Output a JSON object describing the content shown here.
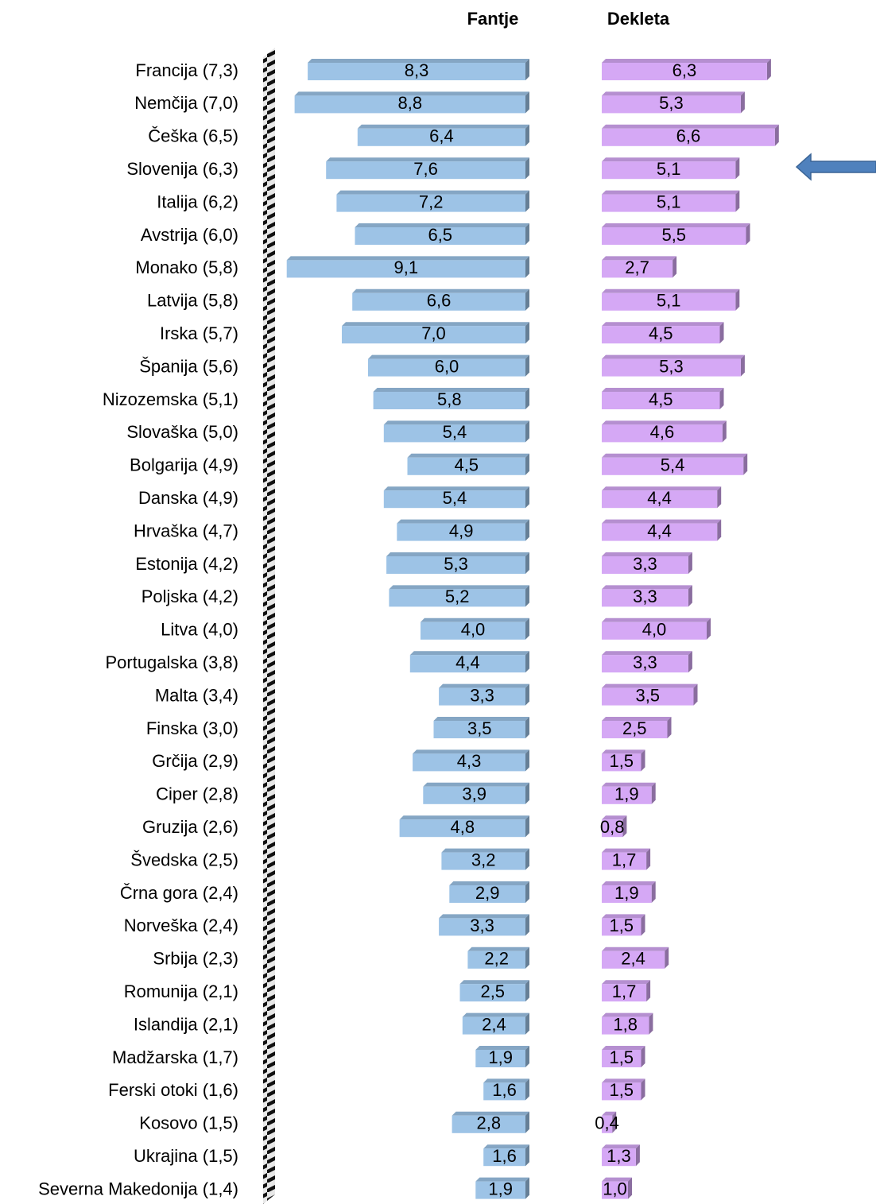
{
  "chart_data": {
    "type": "bar",
    "categories": [
      "Francija (7,3)",
      "Nemčija (7,0)",
      "Češka (6,5)",
      "Slovenija (6,3)",
      "Italija (6,2)",
      "Avstrija (6,0)",
      "Monako (5,8)",
      "Latvija (5,8)",
      "Irska (5,7)",
      "Španija (5,6)",
      "Nizozemska (5,1)",
      "Slovaška (5,0)",
      "Bolgarija (4,9)",
      "Danska (4,9)",
      "Hrvaška (4,7)",
      "Estonija (4,2)",
      "Poljska (4,2)",
      "Litva (4,0)",
      "Portugalska (3,8)",
      "Malta (3,4)",
      "Finska (3,0)",
      "Grčija (2,9)",
      "Ciper (2,8)",
      "Gruzija (2,6)",
      "Švedska (2,5)",
      "Črna gora (2,4)",
      "Norveška (2,4)",
      "Srbija (2,3)",
      "Romunija (2,1)",
      "Islandija (2,1)",
      "Madžarska (1,7)",
      "Ferski otoki (1,6)",
      "Kosovo (1,5)",
      "Ukrajina (1,5)",
      "Severna Makedonija (1,4)"
    ],
    "series": [
      {
        "name": "Fantje",
        "color": "#9dc3e6",
        "values": [
          8.3,
          8.8,
          6.4,
          7.6,
          7.2,
          6.5,
          9.1,
          6.6,
          7.0,
          6.0,
          5.8,
          5.4,
          4.5,
          5.4,
          4.9,
          5.3,
          5.2,
          4.0,
          4.4,
          3.3,
          3.5,
          4.3,
          3.9,
          4.8,
          3.2,
          2.9,
          3.3,
          2.2,
          2.5,
          2.4,
          1.9,
          1.6,
          2.8,
          1.6,
          1.9
        ],
        "value_labels": [
          "8,3",
          "8,8",
          "6,4",
          "7,6",
          "7,2",
          "6,5",
          "9,1",
          "6,6",
          "7,0",
          "6,0",
          "5,8",
          "5,4",
          "4,5",
          "5,4",
          "4,9",
          "5,3",
          "5,2",
          "4,0",
          "4,4",
          "3,3",
          "3,5",
          "4,3",
          "3,9",
          "4,8",
          "3,2",
          "2,9",
          "3,3",
          "2,2",
          "2,5",
          "2,4",
          "1,9",
          "1,6",
          "2,8",
          "1,6",
          "1,9"
        ]
      },
      {
        "name": "Dekleta",
        "color": "#d5a8f5",
        "values": [
          6.3,
          5.3,
          6.6,
          5.1,
          5.1,
          5.5,
          2.7,
          5.1,
          4.5,
          5.3,
          4.5,
          4.6,
          5.4,
          4.4,
          4.4,
          3.3,
          3.3,
          4.0,
          3.3,
          3.5,
          2.5,
          1.5,
          1.9,
          0.8,
          1.7,
          1.9,
          1.5,
          2.4,
          1.7,
          1.8,
          1.5,
          1.5,
          0.4,
          1.3,
          1.0
        ],
        "value_labels": [
          "6,3",
          "5,3",
          "6,6",
          "5,1",
          "5,1",
          "5,5",
          "2,7",
          "5,1",
          "4,5",
          "5,3",
          "4,5",
          "4,6",
          "5,4",
          "4,4",
          "4,4",
          "3,3",
          "3,3",
          "4,0",
          "3,3",
          "3,5",
          "2,5",
          "1,5",
          "1,9",
          "0,8",
          "1,7",
          "1,9",
          "1,5",
          "2,4",
          "1,7",
          "1,8",
          "1,5",
          "1,5",
          "0,4",
          "1,3",
          "1,0"
        ]
      }
    ]
  }
}
